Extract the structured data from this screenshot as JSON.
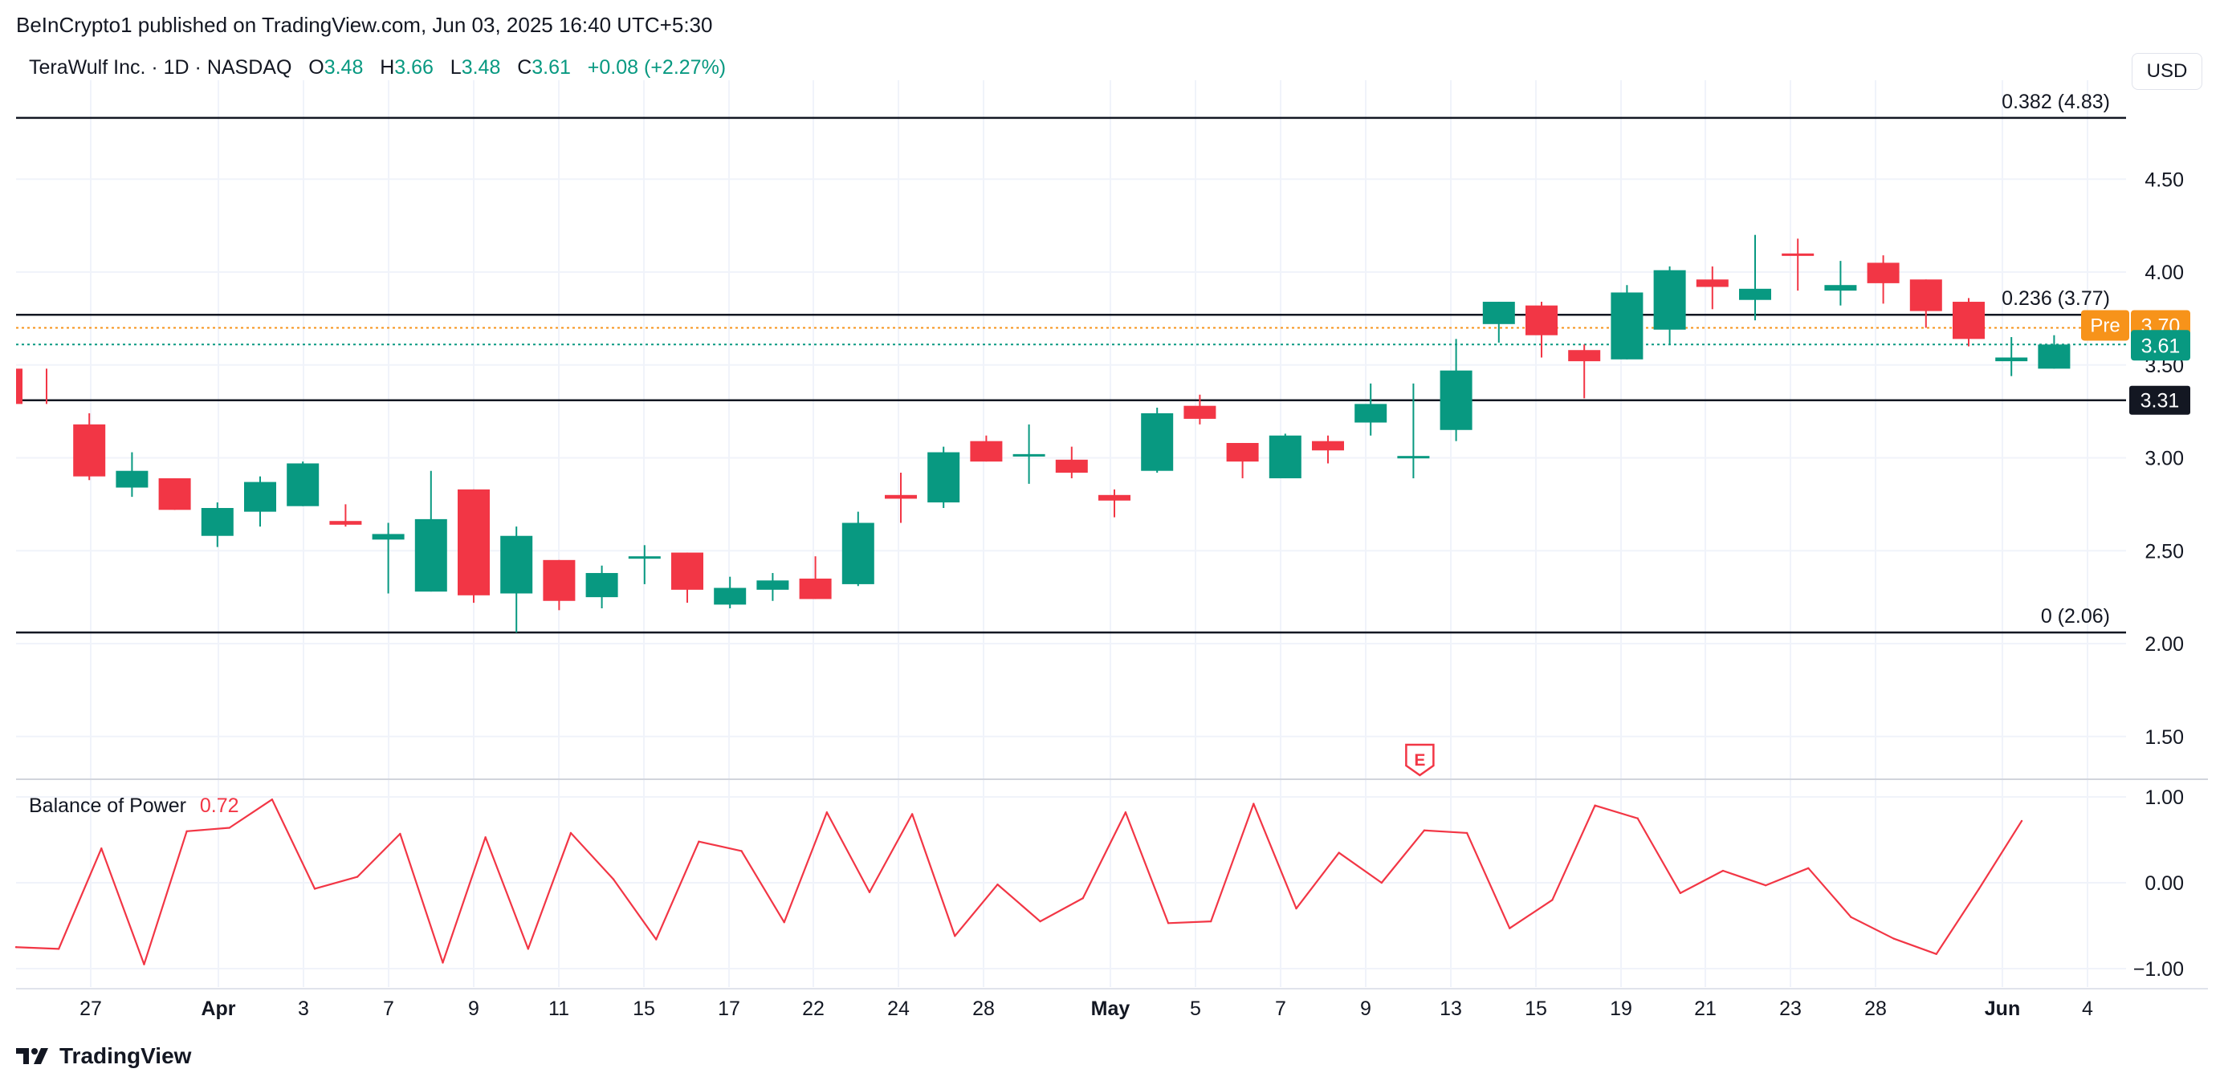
{
  "header": {
    "published": "BeInCrypto1 published on TradingView.com, Jun 03, 2025 16:40 UTC+5:30"
  },
  "legend": {
    "symbol": "TeraWulf Inc. · 1D · NASDAQ",
    "o_label": "O",
    "o_value": "3.48",
    "h_label": "H",
    "h_value": "3.66",
    "l_label": "L",
    "l_value": "3.48",
    "c_label": "C",
    "c_value": "3.61",
    "change": "+0.08 (+2.27%)"
  },
  "currency": "USD",
  "brand": {
    "name": "TradingView"
  },
  "earnings_marker": "E",
  "colors": {
    "up": "#089981",
    "down": "#f23645",
    "pre": "#f7931a",
    "indicator": "#f23645"
  },
  "chart_data": [
    {
      "type": "candlestick",
      "title": "TeraWulf Inc. · 1D · NASDAQ",
      "ylim": [
        1.3,
        5.05
      ],
      "y_ticks": [
        "1.50",
        "2.00",
        "2.50",
        "3.00",
        "3.50",
        "4.00",
        "4.50"
      ],
      "x_ticks": [
        "27",
        "Apr",
        "3",
        "7",
        "9",
        "11",
        "15",
        "17",
        "22",
        "24",
        "28",
        "May",
        "5",
        "7",
        "9",
        "13",
        "15",
        "19",
        "21",
        "23",
        "28",
        "Jun",
        "4"
      ],
      "candles": [
        {
          "o": 3.48,
          "h": 3.48,
          "l": 3.29,
          "c": 3.29
        },
        {
          "o": 3.18,
          "h": 3.24,
          "l": 2.88,
          "c": 2.9
        },
        {
          "o": 2.84,
          "h": 3.03,
          "l": 2.79,
          "c": 2.93
        },
        {
          "o": 2.89,
          "h": 2.89,
          "l": 2.72,
          "c": 2.72
        },
        {
          "o": 2.58,
          "h": 2.76,
          "l": 2.52,
          "c": 2.73
        },
        {
          "o": 2.71,
          "h": 2.9,
          "l": 2.63,
          "c": 2.87
        },
        {
          "o": 2.74,
          "h": 2.98,
          "l": 2.74,
          "c": 2.97
        },
        {
          "o": 2.66,
          "h": 2.75,
          "l": 2.63,
          "c": 2.64
        },
        {
          "o": 2.56,
          "h": 2.65,
          "l": 2.27,
          "c": 2.59
        },
        {
          "o": 2.28,
          "h": 2.93,
          "l": 2.28,
          "c": 2.67
        },
        {
          "o": 2.83,
          "h": 2.83,
          "l": 2.22,
          "c": 2.26
        },
        {
          "o": 2.27,
          "h": 2.63,
          "l": 2.06,
          "c": 2.58
        },
        {
          "o": 2.45,
          "h": 2.45,
          "l": 2.18,
          "c": 2.23
        },
        {
          "o": 2.25,
          "h": 2.42,
          "l": 2.19,
          "c": 2.38
        },
        {
          "o": 2.47,
          "h": 2.53,
          "l": 2.32,
          "c": 2.47
        },
        {
          "o": 2.49,
          "h": 2.49,
          "l": 2.22,
          "c": 2.29
        },
        {
          "o": 2.21,
          "h": 2.36,
          "l": 2.19,
          "c": 2.3
        },
        {
          "o": 2.29,
          "h": 2.38,
          "l": 2.23,
          "c": 2.34
        },
        {
          "o": 2.35,
          "h": 2.47,
          "l": 2.24,
          "c": 2.24
        },
        {
          "o": 2.32,
          "h": 2.71,
          "l": 2.31,
          "c": 2.65
        },
        {
          "o": 2.8,
          "h": 2.92,
          "l": 2.65,
          "c": 2.78
        },
        {
          "o": 2.76,
          "h": 3.06,
          "l": 2.73,
          "c": 3.03
        },
        {
          "o": 3.09,
          "h": 3.12,
          "l": 2.98,
          "c": 2.98
        },
        {
          "o": 3.02,
          "h": 3.18,
          "l": 2.86,
          "c": 3.02
        },
        {
          "o": 2.99,
          "h": 3.06,
          "l": 2.89,
          "c": 2.92
        },
        {
          "o": 2.8,
          "h": 2.83,
          "l": 2.68,
          "c": 2.77
        },
        {
          "o": 2.93,
          "h": 3.27,
          "l": 2.92,
          "c": 3.24
        },
        {
          "o": 3.28,
          "h": 3.34,
          "l": 3.18,
          "c": 3.21
        },
        {
          "o": 3.08,
          "h": 3.08,
          "l": 2.89,
          "c": 2.98
        },
        {
          "o": 2.89,
          "h": 3.13,
          "l": 2.89,
          "c": 3.12
        },
        {
          "o": 3.09,
          "h": 3.12,
          "l": 2.97,
          "c": 3.04
        },
        {
          "o": 3.19,
          "h": 3.4,
          "l": 3.12,
          "c": 3.29
        },
        {
          "o": 3.01,
          "h": 3.4,
          "l": 2.89,
          "c": 3.01
        },
        {
          "o": 3.15,
          "h": 3.64,
          "l": 3.09,
          "c": 3.47
        },
        {
          "o": 3.72,
          "h": 3.84,
          "l": 3.62,
          "c": 3.84
        },
        {
          "o": 3.82,
          "h": 3.84,
          "l": 3.54,
          "c": 3.66
        },
        {
          "o": 3.58,
          "h": 3.61,
          "l": 3.32,
          "c": 3.52
        },
        {
          "o": 3.53,
          "h": 3.93,
          "l": 3.53,
          "c": 3.89
        },
        {
          "o": 3.69,
          "h": 4.03,
          "l": 3.61,
          "c": 4.01
        },
        {
          "o": 3.96,
          "h": 4.03,
          "l": 3.8,
          "c": 3.92
        },
        {
          "o": 3.85,
          "h": 4.2,
          "l": 3.74,
          "c": 3.91
        },
        {
          "o": 4.1,
          "h": 4.18,
          "l": 3.9,
          "c": 4.09
        },
        {
          "o": 3.9,
          "h": 4.06,
          "l": 3.82,
          "c": 3.93
        },
        {
          "o": 4.05,
          "h": 4.09,
          "l": 3.83,
          "c": 3.94
        },
        {
          "o": 3.96,
          "h": 3.96,
          "l": 3.7,
          "c": 3.79
        },
        {
          "o": 3.84,
          "h": 3.86,
          "l": 3.6,
          "c": 3.64
        },
        {
          "o": 3.52,
          "h": 3.65,
          "l": 3.44,
          "c": 3.54
        },
        {
          "o": 3.48,
          "h": 3.66,
          "l": 3.48,
          "c": 3.61
        }
      ],
      "fib_levels": [
        {
          "label": "0.382 (4.83)",
          "value": 4.83
        },
        {
          "label": "0.236 (3.77)",
          "value": 3.77
        },
        {
          "label": "0 (2.06)",
          "value": 2.06
        }
      ],
      "support": {
        "label": "3.31",
        "value": 3.31
      },
      "pre_market": {
        "label": "Pre",
        "value": 3.7,
        "value_label": "3.70"
      },
      "last": {
        "value": 3.61,
        "value_label": "3.61"
      }
    },
    {
      "type": "line",
      "title": "Balance of Power",
      "last_value": "0.72",
      "ylim": [
        -1.2,
        1.2
      ],
      "y_ticks": [
        "1.00",
        "0.00",
        "−1.00"
      ],
      "values": [
        -0.75,
        -0.77,
        0.4,
        -0.95,
        0.6,
        0.64,
        0.97,
        -0.07,
        0.07,
        0.57,
        -0.93,
        0.53,
        -0.77,
        0.58,
        0.04,
        -0.66,
        0.48,
        0.37,
        -0.46,
        0.82,
        -0.11,
        0.8,
        -0.62,
        -0.02,
        -0.45,
        -0.18,
        0.82,
        -0.47,
        -0.45,
        0.92,
        -0.3,
        0.35,
        0.0,
        0.61,
        0.58,
        -0.53,
        -0.2,
        0.9,
        0.75,
        -0.12,
        0.14,
        -0.03,
        0.17,
        -0.4,
        -0.65,
        -0.83,
        -0.07,
        0.72
      ]
    }
  ]
}
